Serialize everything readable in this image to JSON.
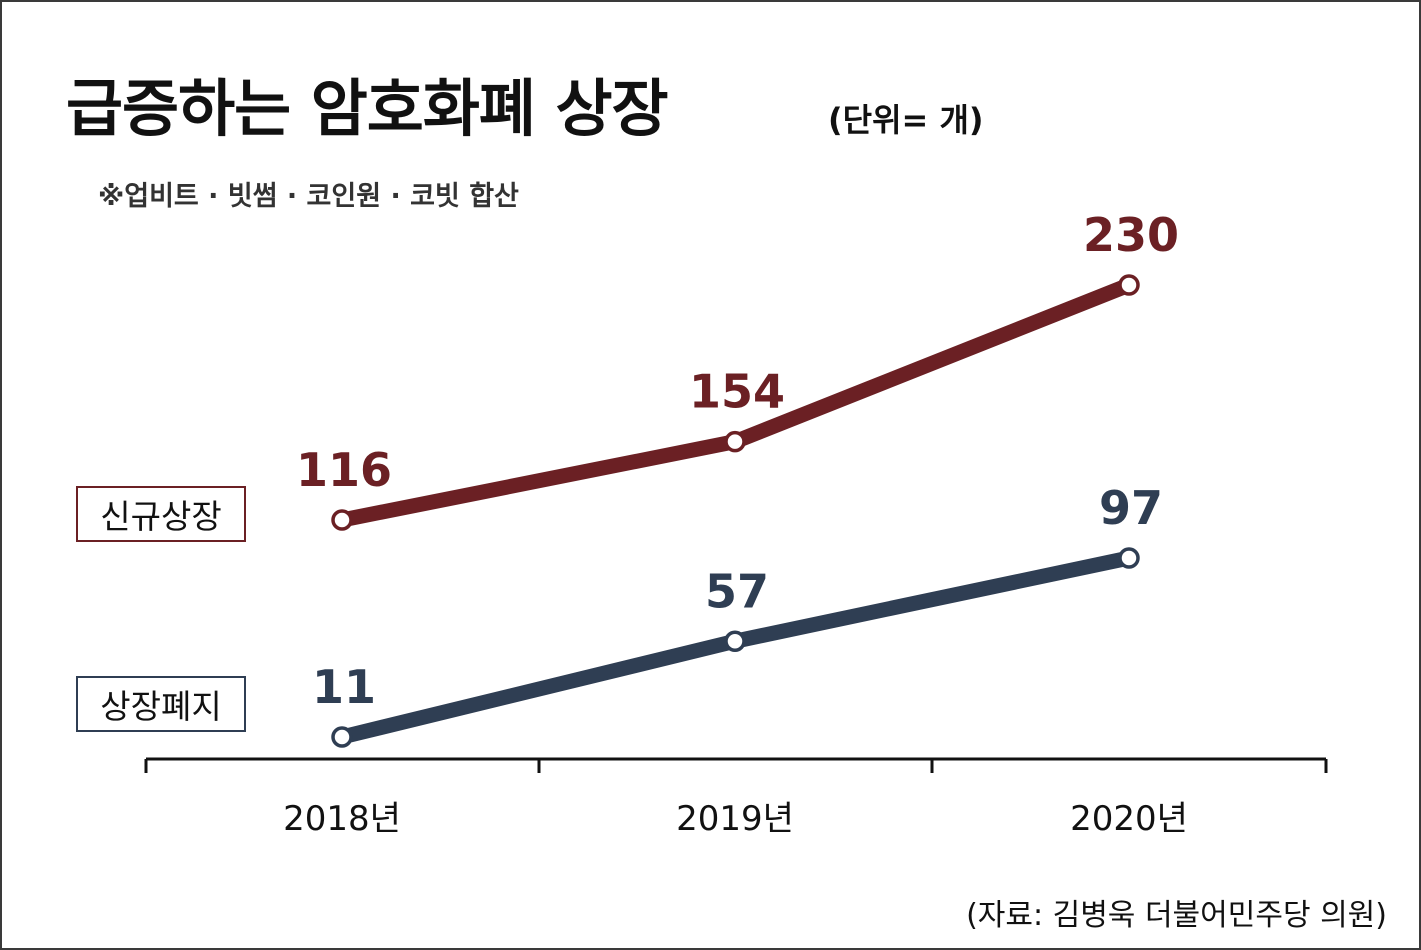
{
  "title": "급증하는 암호화폐 상장",
  "unit": "(단위= 개)",
  "note": "※업비트 · 빗썸 · 코인원 · 코빗 합산",
  "source": "(자료: 김병욱 더불어민주당 의원)",
  "legend": {
    "new_listing": "신규상장",
    "delisting": "상장폐지"
  },
  "colors": {
    "new_listing": "#6b2024",
    "delisting": "#2f3e53",
    "axis": "#111111"
  },
  "chart_data": {
    "type": "line",
    "title": "급증하는 암호화폐 상장",
    "xlabel": "",
    "ylabel": "",
    "categories": [
      "2018년",
      "2019년",
      "2020년"
    ],
    "series": [
      {
        "name": "신규상장",
        "values": [
          116,
          154,
          230
        ],
        "labels": [
          "116",
          "154",
          "230"
        ]
      },
      {
        "name": "상장폐지",
        "values": [
          11,
          57,
          97
        ],
        "labels": [
          "11",
          "57",
          "97"
        ]
      }
    ],
    "grid": false,
    "legend": "left"
  }
}
